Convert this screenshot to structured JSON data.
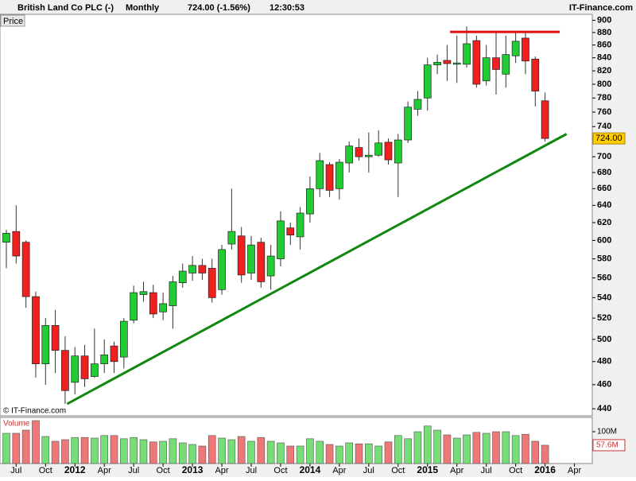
{
  "header": {
    "title": "British Land Co PLC (-)",
    "period": "Monthly",
    "quote": "724.00 (-1.56%)",
    "time": "12:30:53",
    "brand": "IT-Finance.com"
  },
  "chart_data": [
    {
      "type": "candlestick",
      "axis_label": "Price",
      "watermark": "© IT-Finance.com",
      "log_scale": true,
      "categories": [
        null,
        "Jul",
        null,
        null,
        "Oct",
        null,
        null,
        "2012",
        null,
        null,
        "Apr",
        null,
        null,
        "Jul",
        null,
        null,
        "Oct",
        null,
        null,
        "2013",
        null,
        null,
        "Apr",
        null,
        null,
        "Jul",
        null,
        null,
        "Oct",
        null,
        null,
        "2014",
        null,
        null,
        "Apr",
        null,
        null,
        "Jul",
        null,
        null,
        "Oct",
        null,
        null,
        "2015",
        null,
        null,
        "Apr",
        null,
        null,
        "Jul",
        null,
        null,
        "Oct",
        null,
        null,
        "2016",
        null,
        null,
        "Apr"
      ],
      "open": [
        598,
        610,
        598,
        541,
        478,
        513,
        490,
        462,
        485,
        467,
        478,
        494,
        484,
        518,
        543,
        545,
        526,
        532,
        555,
        565,
        573,
        570,
        548,
        596,
        605,
        565,
        598,
        562,
        580,
        614,
        604,
        630,
        660,
        690,
        660,
        692,
        712,
        700,
        702,
        719,
        692,
        722,
        764,
        780,
        829,
        836,
        830,
        830,
        867,
        805,
        840,
        815,
        843,
        871,
        838,
        776,
        null,
        null,
        null
      ],
      "high": [
        612,
        640,
        600,
        546,
        520,
        528,
        503,
        493,
        495,
        510,
        500,
        498,
        520,
        552,
        556,
        553,
        545,
        562,
        575,
        583,
        580,
        580,
        595,
        660,
        615,
        605,
        603,
        595,
        633,
        620,
        638,
        675,
        705,
        693,
        697,
        720,
        724,
        732,
        735,
        724,
        730,
        775,
        790,
        840,
        845,
        860,
        875,
        890,
        875,
        860,
        880,
        875,
        880,
        880,
        842,
        788,
        null,
        null,
        null
      ],
      "low": [
        570,
        575,
        530,
        466,
        460,
        470,
        444,
        452,
        458,
        466,
        470,
        470,
        474,
        515,
        536,
        520,
        518,
        510,
        550,
        557,
        558,
        535,
        543,
        590,
        555,
        558,
        550,
        548,
        572,
        595,
        590,
        620,
        650,
        650,
        647,
        680,
        695,
        680,
        700,
        690,
        650,
        718,
        755,
        762,
        815,
        805,
        802,
        825,
        795,
        798,
        785,
        795,
        832,
        815,
        768,
        720,
        null,
        null,
        null
      ],
      "close": [
        608,
        583,
        541,
        478,
        513,
        490,
        455,
        485,
        465,
        478,
        486,
        480,
        517,
        545,
        546,
        524,
        534,
        556,
        567,
        573,
        565,
        540,
        590,
        610,
        563,
        595,
        556,
        583,
        622,
        606,
        631,
        660,
        695,
        658,
        693,
        714,
        700,
        702,
        718,
        696,
        722,
        767,
        778,
        829,
        833,
        831,
        832,
        862,
        800,
        840,
        822,
        845,
        866,
        835,
        790,
        724,
        null,
        null,
        null
      ],
      "last_label": "724.00",
      "up_color": "#22cc33",
      "down_color": "#ee2020",
      "ylim": [
        435,
        910
      ],
      "yticks": [
        440,
        460,
        480,
        500,
        520,
        540,
        560,
        580,
        600,
        620,
        640,
        660,
        680,
        700,
        740,
        760,
        780,
        800,
        820,
        840,
        860,
        880,
        900
      ],
      "lines": [
        {
          "color": "#e01010",
          "x": [
            45.3,
            56.5
          ],
          "y": [
            881,
            881
          ]
        },
        {
          "color": "#118811",
          "x": [
            6.2,
            57.2
          ],
          "y": [
            444,
            730
          ]
        }
      ]
    },
    {
      "type": "bar",
      "axis_label": "Volume",
      "values": [
        95000000,
        95000000,
        105000000,
        135000000,
        85000000,
        70000000,
        75000000,
        82000000,
        82000000,
        80000000,
        88000000,
        88000000,
        78000000,
        82000000,
        75000000,
        68000000,
        70000000,
        78000000,
        65000000,
        60000000,
        55000000,
        88000000,
        80000000,
        75000000,
        85000000,
        70000000,
        82000000,
        70000000,
        65000000,
        55000000,
        55000000,
        78000000,
        70000000,
        60000000,
        55000000,
        65000000,
        62000000,
        62000000,
        55000000,
        68000000,
        88000000,
        78000000,
        100000000,
        118000000,
        105000000,
        90000000,
        80000000,
        90000000,
        98000000,
        95000000,
        100000000,
        100000000,
        88000000,
        92000000,
        70000000,
        57600000,
        null,
        null,
        null
      ],
      "value_labels": [
        null,
        null,
        null,
        null,
        null,
        null,
        null,
        null,
        null,
        null,
        null,
        null,
        null,
        null,
        null,
        null,
        null,
        null,
        null,
        null,
        null,
        null,
        null,
        null,
        null,
        null,
        null,
        null,
        null,
        null,
        null,
        null,
        null,
        null,
        null,
        null,
        null,
        null,
        null,
        null,
        null,
        null,
        null,
        null,
        null,
        null,
        null,
        null,
        null,
        null,
        null,
        null,
        null,
        null,
        null,
        "57.6M",
        null,
        null,
        null
      ],
      "up_color": "#77dd77",
      "down_color": "#ee7777",
      "ylim": [
        0,
        140000000
      ],
      "yticks": [
        {
          "value": 100000000,
          "label": "100M"
        }
      ]
    }
  ]
}
